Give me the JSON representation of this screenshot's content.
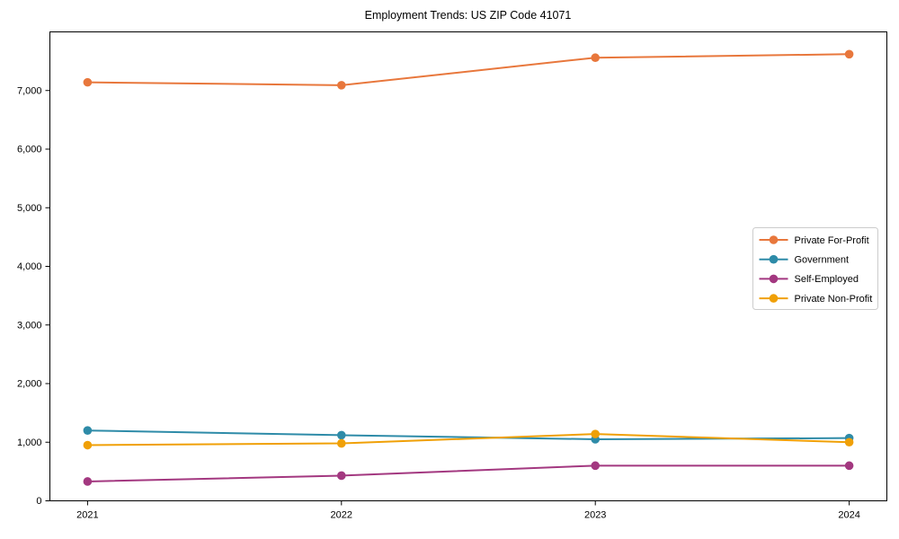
{
  "chart_data": {
    "type": "line",
    "title": "Employment Trends: US ZIP Code 41071",
    "x": [
      "2021",
      "2022",
      "2023",
      "2024"
    ],
    "series": [
      {
        "name": "Private For-Profit",
        "color": "#E8773C",
        "values": [
          7140,
          7090,
          7560,
          7620
        ]
      },
      {
        "name": "Government",
        "color": "#2E8BA8",
        "values": [
          1200,
          1120,
          1050,
          1070
        ]
      },
      {
        "name": "Self-Employed",
        "color": "#A33880",
        "values": [
          330,
          430,
          600,
          600
        ]
      },
      {
        "name": "Private Non-Profit",
        "color": "#F0A007",
        "values": [
          950,
          980,
          1140,
          1000
        ]
      }
    ],
    "xlabel": "",
    "ylabel": "",
    "ylim": [
      0,
      8000
    ],
    "yticks": [
      0,
      1000,
      2000,
      3000,
      4000,
      5000,
      6000,
      7000
    ],
    "ytick_labels": [
      "0",
      "1,000",
      "2,000",
      "3,000",
      "4,000",
      "5,000",
      "6,000",
      "7,000"
    ],
    "grid": false,
    "legend_position": "center right",
    "axis_color": "#000000",
    "legend_border_color": "#cccccc",
    "background": "#ffffff"
  }
}
